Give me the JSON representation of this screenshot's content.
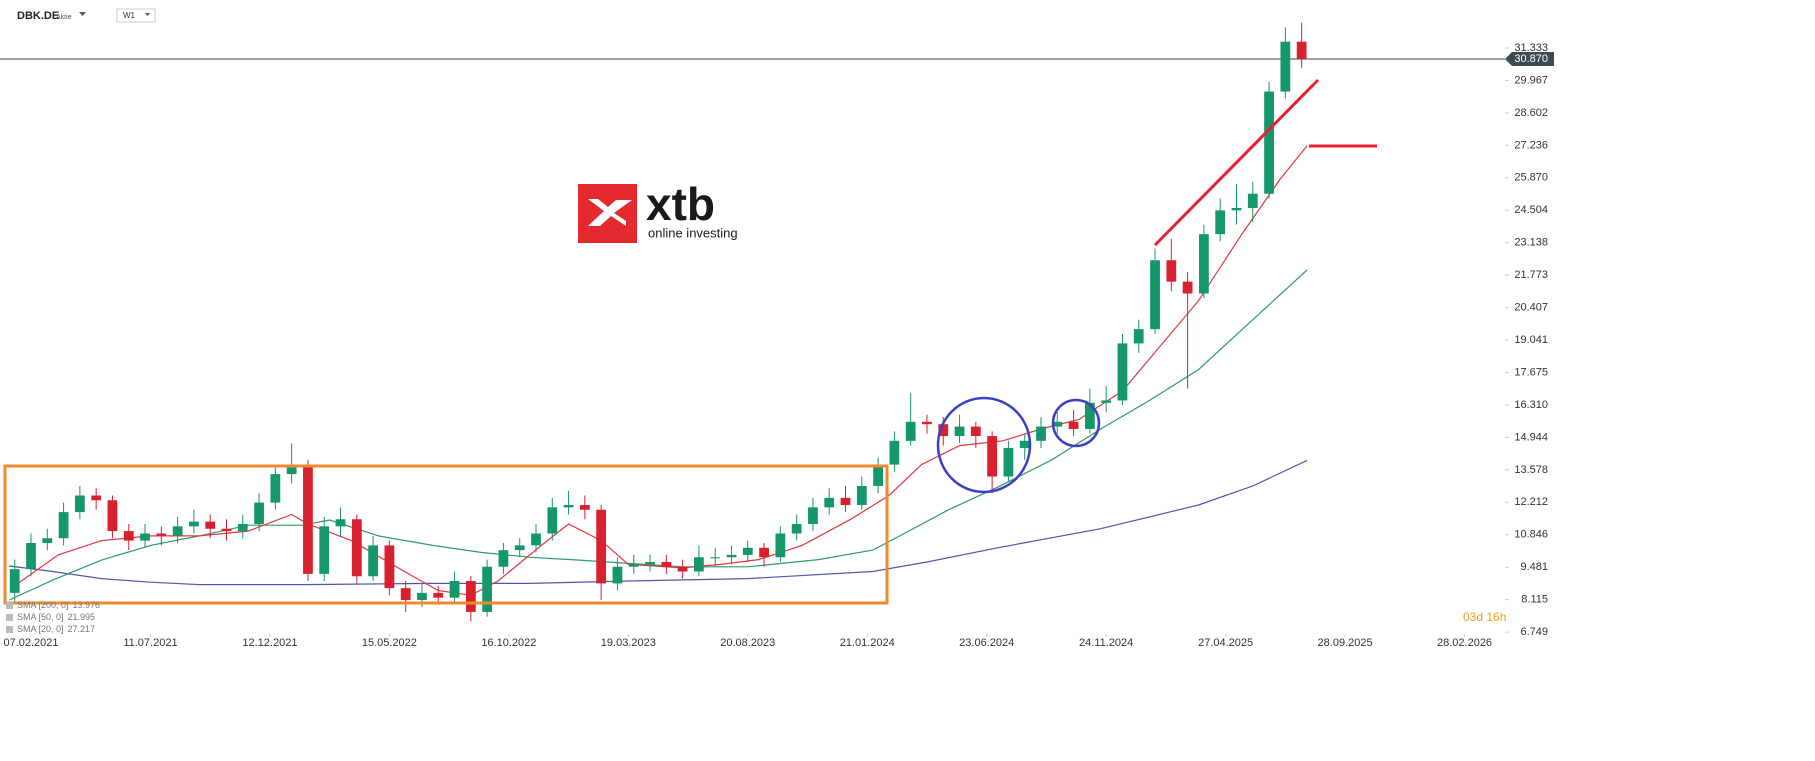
{
  "chart_data": {
    "type": "candlestick",
    "symbol": "DBK.DE",
    "instrument_type": "Aktie",
    "interval": "W1",
    "countdown": "03d 16h",
    "logo": {
      "name": "xtb",
      "tagline": "online investing"
    },
    "up_color": "#14976a",
    "down_color": "#d8202f",
    "x": [
      -3,
      0,
      3,
      6,
      9,
      12,
      15,
      18,
      21,
      24,
      27,
      30,
      33,
      36,
      39,
      42,
      45,
      48,
      51,
      54,
      57,
      60,
      63,
      66,
      69,
      72,
      75,
      78,
      81,
      84,
      87,
      90,
      93,
      96,
      99,
      102,
      105,
      108,
      111,
      114,
      117,
      120,
      123,
      126,
      129,
      132,
      135,
      138,
      141,
      144,
      147,
      150,
      153,
      156,
      159,
      162,
      165,
      168,
      171,
      174,
      177,
      180,
      183,
      186,
      189,
      192,
      195,
      198,
      201,
      204,
      207,
      210,
      213,
      216,
      219,
      222,
      225,
      228,
      231,
      234
    ],
    "open": [
      8.4,
      9.4,
      10.5,
      10.7,
      11.8,
      12.5,
      12.3,
      11.0,
      10.6,
      10.9,
      10.8,
      11.2,
      11.4,
      11.1,
      11.0,
      11.3,
      12.2,
      13.4,
      13.8,
      9.2,
      11.2,
      11.5,
      9.1,
      10.4,
      8.6,
      8.1,
      8.4,
      8.2,
      8.9,
      7.6,
      9.5,
      10.2,
      10.4,
      10.9,
      12.0,
      12.1,
      11.9,
      8.8,
      9.5,
      9.6,
      9.7,
      9.5,
      9.3,
      9.9,
      9.9,
      10.0,
      10.3,
      9.9,
      10.9,
      11.3,
      12.0,
      12.4,
      12.1,
      12.9,
      13.8,
      14.8,
      15.6,
      15.5,
      15.0,
      15.4,
      15.0,
      13.3,
      14.5,
      14.8,
      15.4,
      15.6,
      15.3,
      16.4,
      16.5,
      18.9,
      19.5,
      22.4,
      21.5,
      21.0,
      23.5,
      24.5,
      24.6,
      25.2,
      29.5,
      31.6
    ],
    "high": [
      9.8,
      10.9,
      11.1,
      12.2,
      12.9,
      12.8,
      12.5,
      11.3,
      11.3,
      11.2,
      11.6,
      11.9,
      11.7,
      11.5,
      11.7,
      12.6,
      13.8,
      14.7,
      14.0,
      11.6,
      12.0,
      11.7,
      10.8,
      10.6,
      8.9,
      8.8,
      8.7,
      9.3,
      9.1,
      9.8,
      10.5,
      10.7,
      11.3,
      12.4,
      12.7,
      12.5,
      12.1,
      9.9,
      10.0,
      10.0,
      10.0,
      9.8,
      10.4,
      10.3,
      10.4,
      10.6,
      10.5,
      11.2,
      11.7,
      12.4,
      12.8,
      12.9,
      13.3,
      14.1,
      15.2,
      16.8,
      15.9,
      15.8,
      15.9,
      15.6,
      15.2,
      14.8,
      15.1,
      15.8,
      16.0,
      16.1,
      17.0,
      17.1,
      19.3,
      19.9,
      22.9,
      23.3,
      21.9,
      23.9,
      25.0,
      25.6,
      25.7,
      29.9,
      32.2,
      32.4
    ],
    "low": [
      8.0,
      9.1,
      10.2,
      10.4,
      11.5,
      11.9,
      10.7,
      10.2,
      10.3,
      10.4,
      10.5,
      10.9,
      10.7,
      10.6,
      10.7,
      11.0,
      11.9,
      13.0,
      8.9,
      8.9,
      10.8,
      8.8,
      8.9,
      8.3,
      7.6,
      7.8,
      7.9,
      8.0,
      7.2,
      7.4,
      9.2,
      9.9,
      10.1,
      10.6,
      11.7,
      11.5,
      8.1,
      8.5,
      9.2,
      9.3,
      9.2,
      9.0,
      9.1,
      9.5,
      9.6,
      9.7,
      9.5,
      9.7,
      10.6,
      11.0,
      11.7,
      11.8,
      11.9,
      12.6,
      13.5,
      14.6,
      15.1,
      14.6,
      14.7,
      14.5,
      12.6,
      13.1,
      14.0,
      14.5,
      15.1,
      15.0,
      15.1,
      16.0,
      16.3,
      18.5,
      19.3,
      21.1,
      17.0,
      20.8,
      23.2,
      23.9,
      24.0,
      25.0,
      29.2,
      30.5
    ],
    "close": [
      9.4,
      10.5,
      10.7,
      11.8,
      12.5,
      12.3,
      11.0,
      10.6,
      10.9,
      10.8,
      11.2,
      11.4,
      11.1,
      11.0,
      11.3,
      12.2,
      13.4,
      13.8,
      9.2,
      11.2,
      11.5,
      9.1,
      10.4,
      8.6,
      8.1,
      8.4,
      8.2,
      8.9,
      7.6,
      9.5,
      10.2,
      10.4,
      10.9,
      12.0,
      12.1,
      11.9,
      8.8,
      9.5,
      9.6,
      9.7,
      9.5,
      9.3,
      9.9,
      9.9,
      10.0,
      10.3,
      9.9,
      10.9,
      11.3,
      12.0,
      12.4,
      12.1,
      12.9,
      13.8,
      14.8,
      15.6,
      15.5,
      15.0,
      15.4,
      15.0,
      13.3,
      14.5,
      14.8,
      15.4,
      15.6,
      15.3,
      16.4,
      16.5,
      18.9,
      19.5,
      22.4,
      21.5,
      21.0,
      23.5,
      24.5,
      24.6,
      25.2,
      29.5,
      31.6,
      30.87
    ],
    "indicators": [
      {
        "name": "SMA [200, 0]",
        "color": "#5256a8",
        "x": [
          -4,
          4,
          13,
          22,
          31,
          50,
          74,
          92,
          110,
          132,
          155,
          165,
          178,
          197,
          215,
          225,
          235
        ],
        "values": [
          9.53,
          9.3,
          9.0,
          8.85,
          8.75,
          8.75,
          8.8,
          8.8,
          8.9,
          9.0,
          9.3,
          9.7,
          10.3,
          11.1,
          12.1,
          12.9,
          13.976
        ]
      },
      {
        "name": "SMA [50, 0]",
        "color": "#2e9a6a",
        "x": [
          -4,
          4,
          13,
          22,
          31,
          40,
          50,
          55,
          64,
          74,
          83,
          92,
          101,
          109,
          120,
          132,
          145,
          155,
          160,
          169,
          178,
          188,
          197,
          206,
          215,
          225,
          235
        ],
        "values": [
          8.1,
          8.94,
          9.78,
          10.4,
          10.8,
          11.25,
          11.25,
          11.47,
          10.8,
          10.4,
          10.1,
          9.9,
          9.78,
          9.66,
          9.5,
          9.5,
          9.8,
          10.2,
          10.8,
          11.9,
          12.85,
          14.0,
          15.3,
          16.5,
          17.8,
          19.9,
          21.995
        ]
      },
      {
        "name": "SMA [20, 0]",
        "color": "#e0383e",
        "x": [
          -3,
          5,
          13,
          22,
          31,
          40,
          48,
          51,
          59,
          68,
          75,
          81,
          86,
          94,
          99,
          105,
          110,
          120,
          127,
          134,
          142,
          151,
          158,
          164,
          171,
          179,
          186,
          193,
          201,
          208,
          215,
          223,
          230,
          235
        ],
        "values": [
          8.7,
          10.0,
          10.6,
          10.8,
          10.8,
          11.0,
          11.7,
          11.3,
          10.6,
          9.4,
          8.5,
          8.3,
          8.9,
          10.4,
          11.3,
          10.6,
          9.6,
          9.45,
          9.6,
          9.8,
          10.4,
          11.5,
          12.5,
          13.8,
          14.6,
          14.8,
          15.3,
          15.7,
          16.9,
          18.8,
          20.7,
          23.5,
          25.8,
          27.217
        ]
      }
    ],
    "price_line": {
      "value": 30.87,
      "label": "30.870",
      "color": "#5d6b72"
    },
    "ylim": [
      6.67,
      33.354
    ],
    "yticks": [
      6.749,
      8.115,
      9.481,
      10.846,
      12.212,
      13.578,
      14.944,
      {
        "value": 16.31,
        "label": "16.310"
      },
      17.675,
      19.041,
      20.407,
      21.773,
      23.138,
      24.504,
      {
        "value": 25.87,
        "label": "25.870"
      },
      27.236,
      28.602,
      29.967,
      31.333
    ],
    "xlim": [
      -5.71,
      271.45
    ],
    "xticks": [
      {
        "value": 0,
        "label": "07.02.2021"
      },
      {
        "value": 22,
        "label": "11.07.2021"
      },
      {
        "value": 44,
        "label": "12.12.2021"
      },
      {
        "value": 66,
        "label": "15.05.2022"
      },
      {
        "value": 88,
        "label": "16.10.2022"
      },
      {
        "value": 110,
        "label": "19.03.2023"
      },
      {
        "value": 132,
        "label": "20.08.2023"
      },
      {
        "value": 154,
        "label": "21.01.2024"
      },
      {
        "value": 176,
        "label": "23.06.2024"
      },
      {
        "value": 198,
        "label": "24.11.2024"
      },
      {
        "value": 220,
        "label": "27.04.2025"
      },
      {
        "value": 242,
        "label": "28.09.2025"
      },
      {
        "value": 264,
        "label": "28.02.2026"
      }
    ]
  }
}
